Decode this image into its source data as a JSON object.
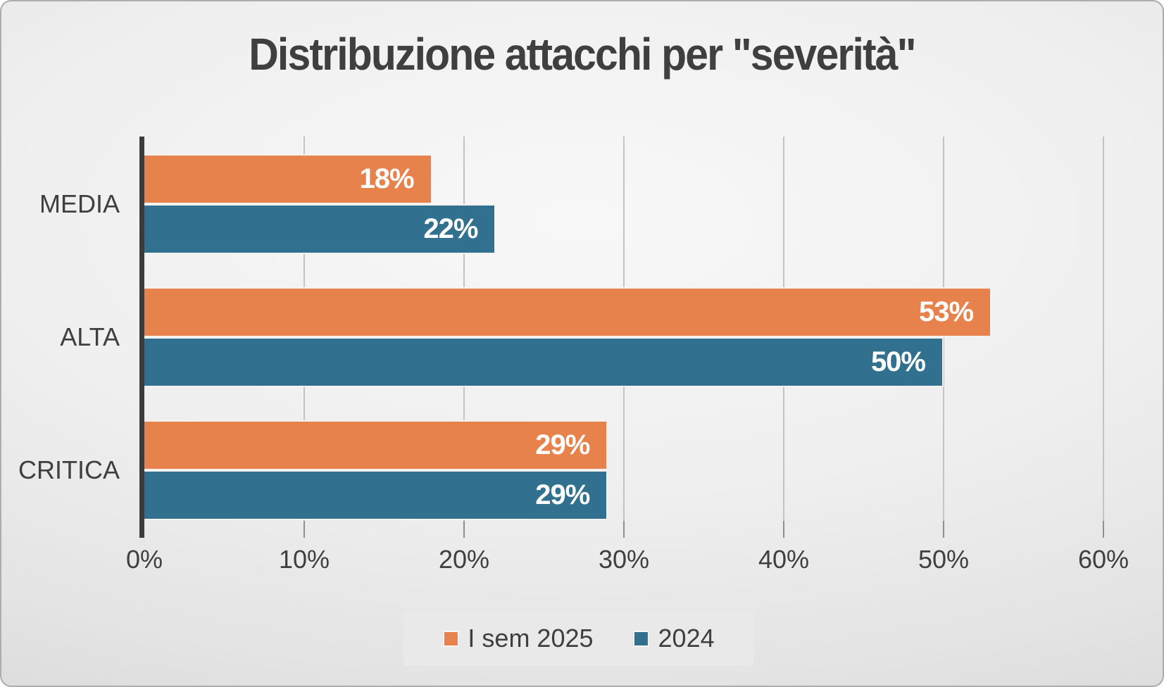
{
  "title": "Distribuzione attacchi per \"severità\"",
  "chart_data": {
    "type": "bar",
    "orientation": "horizontal",
    "title": "Distribuzione attacchi per \"severità\"",
    "categories": [
      "MEDIA",
      "ALTA",
      "CRITICA"
    ],
    "series": [
      {
        "name": "I sem 2025",
        "color": "#E8824C",
        "values": [
          18,
          53,
          29
        ]
      },
      {
        "name": "2024",
        "color": "#31708E",
        "values": [
          22,
          50,
          29
        ]
      }
    ],
    "data_labels": [
      [
        "18%",
        "53%",
        "29%"
      ],
      [
        "22%",
        "50%",
        "29%"
      ]
    ],
    "value_suffix": "%",
    "xlim": [
      0,
      60
    ],
    "x_ticks": [
      "0%",
      "10%",
      "20%",
      "30%",
      "40%",
      "50%",
      "60%"
    ],
    "grid": true,
    "legend_position": "bottom"
  },
  "colors": {
    "series_1": "#E8824C",
    "series_2": "#31708E",
    "text": "#3f3f3f",
    "gridline": "#c3c3c3",
    "axis": "#3b3b3b",
    "bar_value_label": "#ffffff",
    "legend_background": "#e9e9e9",
    "background_edge": "#d0d0d0",
    "background_center": "#f8f8f8"
  }
}
